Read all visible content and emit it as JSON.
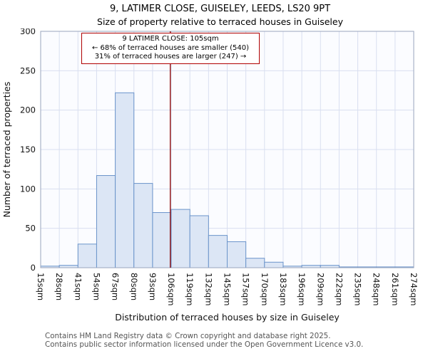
{
  "title": "9, LATIMER CLOSE, GUISELEY, LEEDS, LS20 9PT",
  "subtitle": "Size of property relative to terraced houses in Guiseley",
  "annotation": {
    "line1": "9 LATIMER CLOSE: 105sqm",
    "line2": "← 68% of terraced houses are smaller (540)",
    "line3": "31% of terraced houses are larger (247) →"
  },
  "footer": {
    "line1": "Contains HM Land Registry data © Crown copyright and database right 2025.",
    "line2": "Contains public sector information licensed under the Open Government Licence v3.0."
  },
  "chart_data": {
    "type": "bar",
    "title": "9, LATIMER CLOSE, GUISELEY, LEEDS, LS20 9PT",
    "subtitle": "Size of property relative to terraced houses in Guiseley",
    "xlabel": "Distribution of terraced houses by size in Guiseley",
    "ylabel": "Number of terraced properties",
    "categories": [
      "15sqm",
      "28sqm",
      "41sqm",
      "54sqm",
      "67sqm",
      "80sqm",
      "93sqm",
      "106sqm",
      "119sqm",
      "132sqm",
      "145sqm",
      "157sqm",
      "170sqm",
      "183sqm",
      "196sqm",
      "209sqm",
      "222sqm",
      "235sqm",
      "248sqm",
      "261sqm",
      "274sqm"
    ],
    "values": [
      2,
      3,
      30,
      117,
      222,
      107,
      70,
      74,
      66,
      41,
      33,
      12,
      7,
      2,
      3,
      3,
      1,
      1,
      1,
      1
    ],
    "ylim": [
      0,
      300
    ],
    "yticks": [
      0,
      50,
      100,
      150,
      200,
      250,
      300
    ],
    "axis_min": 15,
    "axis_max": 274,
    "grid": "on",
    "legend": "none",
    "marker": {
      "value": 105,
      "label": "105sqm",
      "color": "#8b0000"
    },
    "colors": {
      "bar_fill": "#dce6f5",
      "bar_stroke": "#6b94ca",
      "grid": "#d9dff0",
      "plot_border": "#9aa5bd",
      "plot_bg": "#fbfcff",
      "marker": "#8b0000"
    }
  }
}
